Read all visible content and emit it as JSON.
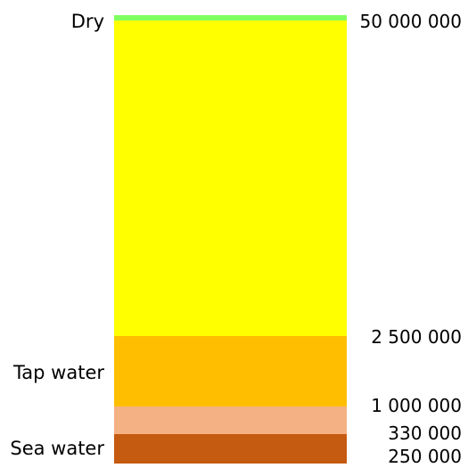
{
  "bands": [
    {
      "name": "dry",
      "label": "Dry",
      "color": "#80ff60"
    },
    {
      "name": "main",
      "label": "",
      "color": "#ffff00"
    },
    {
      "name": "tap-water",
      "label": "Tap water",
      "color": "#ffbf00"
    },
    {
      "name": "transition",
      "label": "",
      "color": "#f4b183"
    },
    {
      "name": "sea-water",
      "label": "Sea water",
      "color": "#c55a11"
    }
  ],
  "scale_values": [
    "50 000 000",
    "2 500 000",
    "1 000 000",
    "330 000",
    "250 000"
  ]
}
